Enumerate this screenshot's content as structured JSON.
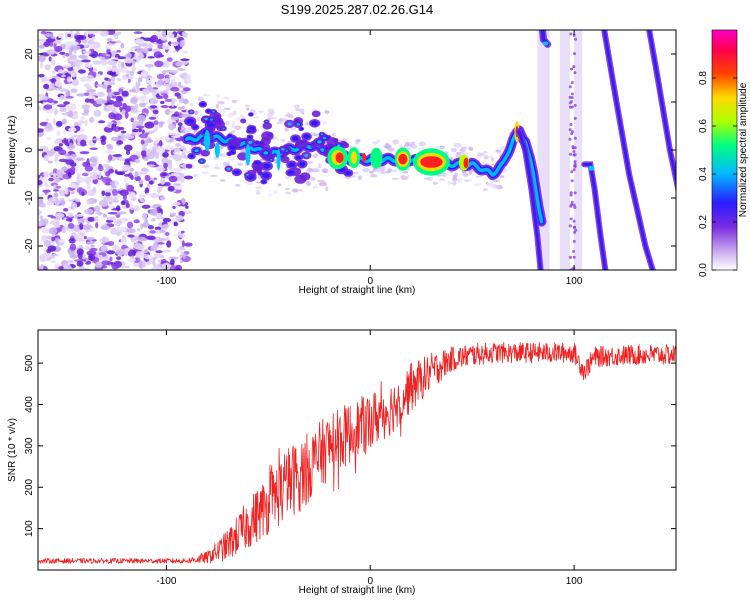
{
  "title": "S199.2025.287.02.26.G14",
  "chart_data": [
    {
      "type": "heatmap",
      "name": "spectrogram",
      "xlabel": "Height of straight line (km)",
      "ylabel": "Frequency (Hz)",
      "xlim": [
        -163,
        150
      ],
      "ylim": [
        -25,
        25
      ],
      "xticks": [
        -100,
        0,
        100
      ],
      "yticks": [
        -20,
        -10,
        0,
        10,
        20
      ],
      "colorbar": {
        "label": "Normalized spectral amplitude",
        "range": [
          0,
          1
        ],
        "ticks": [
          "0.0",
          "0.2",
          "0.4",
          "0.6",
          "0.8"
        ],
        "colors": [
          "#ffffff",
          "#c8a8f0",
          "#7a2be0",
          "#2a1cff",
          "#00b8ff",
          "#00ff80",
          "#b0ff00",
          "#ffd800",
          "#ff4000",
          "#ff0050",
          "#ff00c8"
        ]
      },
      "main_trace": {
        "description_points_x": [
          -90,
          -80,
          -70,
          -60,
          -50,
          -40,
          -30,
          -20,
          -10,
          0,
          10,
          20,
          30,
          40,
          50,
          60,
          65,
          70,
          73,
          76,
          80,
          84
        ],
        "description_points_y": [
          2,
          3,
          2,
          1,
          -1,
          0,
          1,
          0,
          -2,
          -2,
          -2,
          -2,
          -3,
          -3,
          -3,
          -5,
          -3,
          2,
          4,
          2,
          -5,
          -15
        ]
      }
    },
    {
      "type": "line",
      "name": "snr",
      "xlabel": "Height of straight line (km)",
      "ylabel": "SNR (10 * v/v)",
      "xlim": [
        -163,
        150
      ],
      "ylim": [
        0,
        580
      ],
      "xticks": [
        -100,
        0,
        100
      ],
      "yticks": [
        100,
        200,
        300,
        400,
        500
      ],
      "color": "#ee2222",
      "envelope": {
        "x": [
          -163,
          -100,
          -90,
          -80,
          -70,
          -60,
          -50,
          -40,
          -30,
          -20,
          -10,
          0,
          10,
          20,
          30,
          40,
          50,
          60,
          80,
          100,
          105,
          110,
          130,
          150
        ],
        "y": [
          22,
          22,
          22,
          30,
          60,
          110,
          160,
          210,
          250,
          300,
          330,
          360,
          390,
          440,
          480,
          510,
          520,
          525,
          525,
          525,
          480,
          515,
          520,
          520
        ]
      },
      "noise_amplitude": {
        "x": [
          -163,
          -90,
          -80,
          -60,
          -40,
          -20,
          0,
          20,
          40,
          60,
          100,
          150
        ],
        "y": [
          6,
          6,
          15,
          60,
          90,
          80,
          70,
          60,
          30,
          25,
          25,
          25
        ]
      }
    }
  ]
}
